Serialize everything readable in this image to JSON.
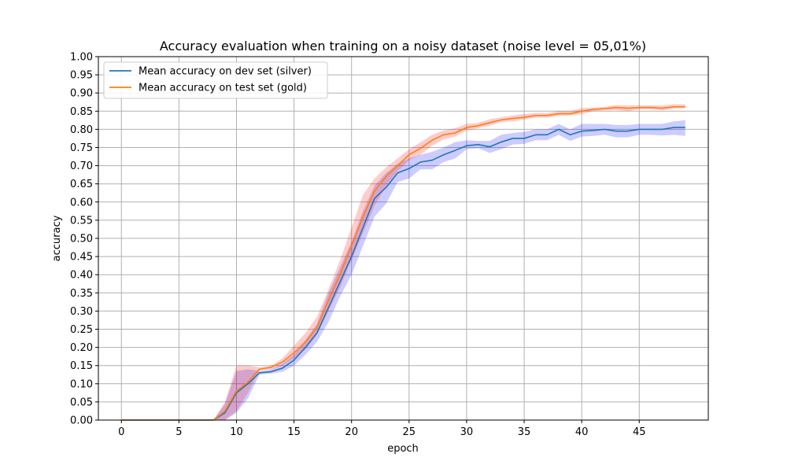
{
  "chart_data": {
    "type": "line",
    "title": "Accuracy evaluation when training on a noisy dataset (noise level = 05,01%)",
    "xlabel": "epoch",
    "ylabel": "accuracy",
    "xlim": [
      -2,
      51
    ],
    "ylim": [
      0,
      1
    ],
    "x_ticks": [
      0,
      5,
      10,
      15,
      20,
      25,
      30,
      35,
      40,
      45
    ],
    "y_ticks": [
      "0.00",
      "0.05",
      "0.10",
      "0.15",
      "0.20",
      "0.25",
      "0.30",
      "0.35",
      "0.40",
      "0.45",
      "0.50",
      "0.55",
      "0.60",
      "0.65",
      "0.70",
      "0.75",
      "0.80",
      "0.85",
      "0.90",
      "0.95",
      "1.00"
    ],
    "grid": true,
    "legend_position": "top-left",
    "x": [
      0,
      1,
      2,
      3,
      4,
      5,
      6,
      7,
      8,
      9,
      10,
      11,
      12,
      13,
      14,
      15,
      16,
      17,
      18,
      19,
      20,
      21,
      22,
      23,
      24,
      25,
      26,
      27,
      28,
      29,
      30,
      31,
      32,
      33,
      34,
      35,
      36,
      37,
      38,
      39,
      40,
      41,
      42,
      43,
      44,
      45,
      46,
      47,
      48,
      49
    ],
    "series": [
      {
        "name": "Mean accuracy on dev set (silver)",
        "color": "#1f77b4",
        "band_color": "#0000ff",
        "values": [
          0,
          0,
          0,
          0,
          0,
          0,
          0,
          0,
          0,
          0.02,
          0.075,
          0.1,
          0.13,
          0.133,
          0.143,
          0.165,
          0.2,
          0.24,
          0.31,
          0.38,
          0.45,
          0.53,
          0.61,
          0.64,
          0.68,
          0.692,
          0.71,
          0.715,
          0.73,
          0.742,
          0.755,
          0.758,
          0.752,
          0.765,
          0.775,
          0.775,
          0.785,
          0.785,
          0.8,
          0.785,
          0.795,
          0.797,
          0.8,
          0.795,
          0.795,
          0.8,
          0.8,
          0.8,
          0.805,
          0.805
        ],
        "lower": [
          0,
          0,
          0,
          0,
          0,
          0,
          0,
          0,
          0,
          0,
          0.02,
          0.06,
          0.125,
          0.128,
          0.133,
          0.15,
          0.18,
          0.215,
          0.27,
          0.34,
          0.4,
          0.48,
          0.56,
          0.595,
          0.655,
          0.665,
          0.69,
          0.69,
          0.71,
          0.72,
          0.745,
          0.748,
          0.735,
          0.745,
          0.758,
          0.76,
          0.77,
          0.77,
          0.785,
          0.768,
          0.78,
          0.782,
          0.785,
          0.778,
          0.778,
          0.785,
          0.785,
          0.783,
          0.785,
          0.782
        ],
        "upper": [
          0,
          0,
          0,
          0,
          0,
          0,
          0,
          0,
          0,
          0.045,
          0.135,
          0.14,
          0.135,
          0.14,
          0.155,
          0.18,
          0.22,
          0.265,
          0.35,
          0.42,
          0.49,
          0.575,
          0.645,
          0.68,
          0.705,
          0.72,
          0.73,
          0.738,
          0.75,
          0.765,
          0.77,
          0.768,
          0.768,
          0.785,
          0.79,
          0.793,
          0.8,
          0.8,
          0.815,
          0.8,
          0.815,
          0.815,
          0.815,
          0.812,
          0.812,
          0.815,
          0.815,
          0.815,
          0.822,
          0.825
        ]
      },
      {
        "name": "Mean accuracy on test set (gold)",
        "color": "#ff7f0e",
        "band_color": "#ff0000",
        "values": [
          0,
          0,
          0,
          0,
          0,
          0,
          0,
          0,
          0,
          0.025,
          0.08,
          0.105,
          0.14,
          0.145,
          0.16,
          0.185,
          0.215,
          0.255,
          0.33,
          0.4,
          0.48,
          0.56,
          0.63,
          0.67,
          0.7,
          0.73,
          0.748,
          0.77,
          0.785,
          0.79,
          0.805,
          0.81,
          0.818,
          0.826,
          0.83,
          0.833,
          0.838,
          0.838,
          0.843,
          0.843,
          0.85,
          0.855,
          0.857,
          0.86,
          0.858,
          0.86,
          0.86,
          0.858,
          0.862,
          0.862
        ],
        "lower": [
          0,
          0,
          0,
          0,
          0,
          0,
          0,
          0,
          0,
          0,
          0.025,
          0.075,
          0.137,
          0.14,
          0.15,
          0.17,
          0.195,
          0.235,
          0.3,
          0.365,
          0.44,
          0.515,
          0.59,
          0.645,
          0.685,
          0.715,
          0.73,
          0.755,
          0.772,
          0.78,
          0.797,
          0.803,
          0.81,
          0.82,
          0.822,
          0.827,
          0.832,
          0.832,
          0.837,
          0.838,
          0.842,
          0.85,
          0.852,
          0.853,
          0.85,
          0.855,
          0.855,
          0.852,
          0.857,
          0.858
        ],
        "upper": [
          0,
          0,
          0,
          0,
          0,
          0,
          0,
          0,
          0,
          0.05,
          0.15,
          0.15,
          0.145,
          0.15,
          0.17,
          0.205,
          0.24,
          0.285,
          0.36,
          0.44,
          0.53,
          0.62,
          0.665,
          0.695,
          0.72,
          0.745,
          0.765,
          0.785,
          0.797,
          0.803,
          0.815,
          0.818,
          0.828,
          0.833,
          0.838,
          0.842,
          0.845,
          0.845,
          0.85,
          0.85,
          0.858,
          0.86,
          0.862,
          0.867,
          0.866,
          0.866,
          0.866,
          0.865,
          0.869,
          0.869
        ]
      }
    ]
  }
}
